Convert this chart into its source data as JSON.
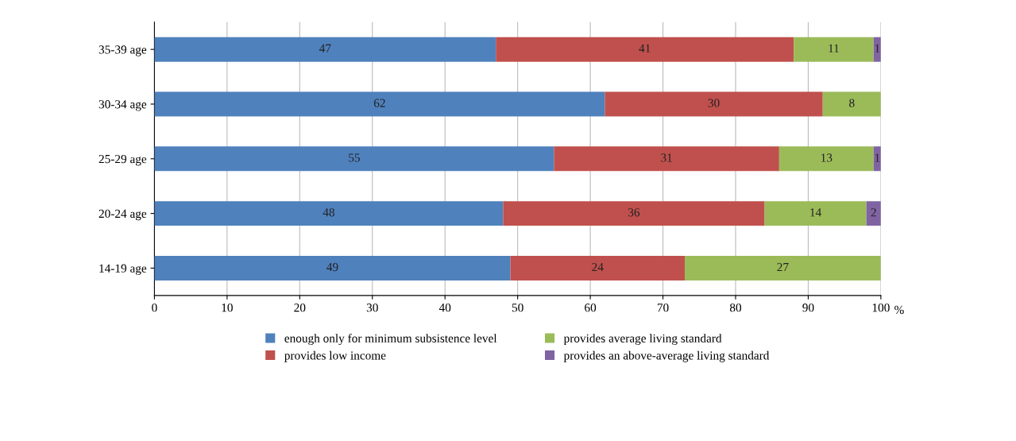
{
  "chart_data": {
    "type": "bar",
    "orientation": "horizontal",
    "stacked": true,
    "data_labels": true,
    "categories": [
      "35-39 age",
      "30-34 age",
      "25-29 age",
      "20-24 age",
      "14-19 age"
    ],
    "series": [
      {
        "name": "enough only for minimum subsistence level",
        "color": "#4f81bd",
        "values": [
          47,
          62,
          55,
          48,
          49
        ]
      },
      {
        "name": "provides low income",
        "color": "#c0504d",
        "values": [
          41,
          30,
          31,
          36,
          24
        ]
      },
      {
        "name": "provides average living standard",
        "color": "#9bbb59",
        "values": [
          11,
          8,
          13,
          14,
          27
        ]
      },
      {
        "name": "provides an above-average living standard",
        "color": "#8064a2",
        "values": [
          1,
          null,
          1,
          2,
          null
        ]
      }
    ],
    "xlabel": "%",
    "xlim": [
      0,
      100
    ],
    "xticks": [
      0,
      10,
      20,
      30,
      40,
      50,
      60,
      70,
      80,
      90,
      100
    ],
    "grid": "x",
    "legend": "bottom"
  }
}
